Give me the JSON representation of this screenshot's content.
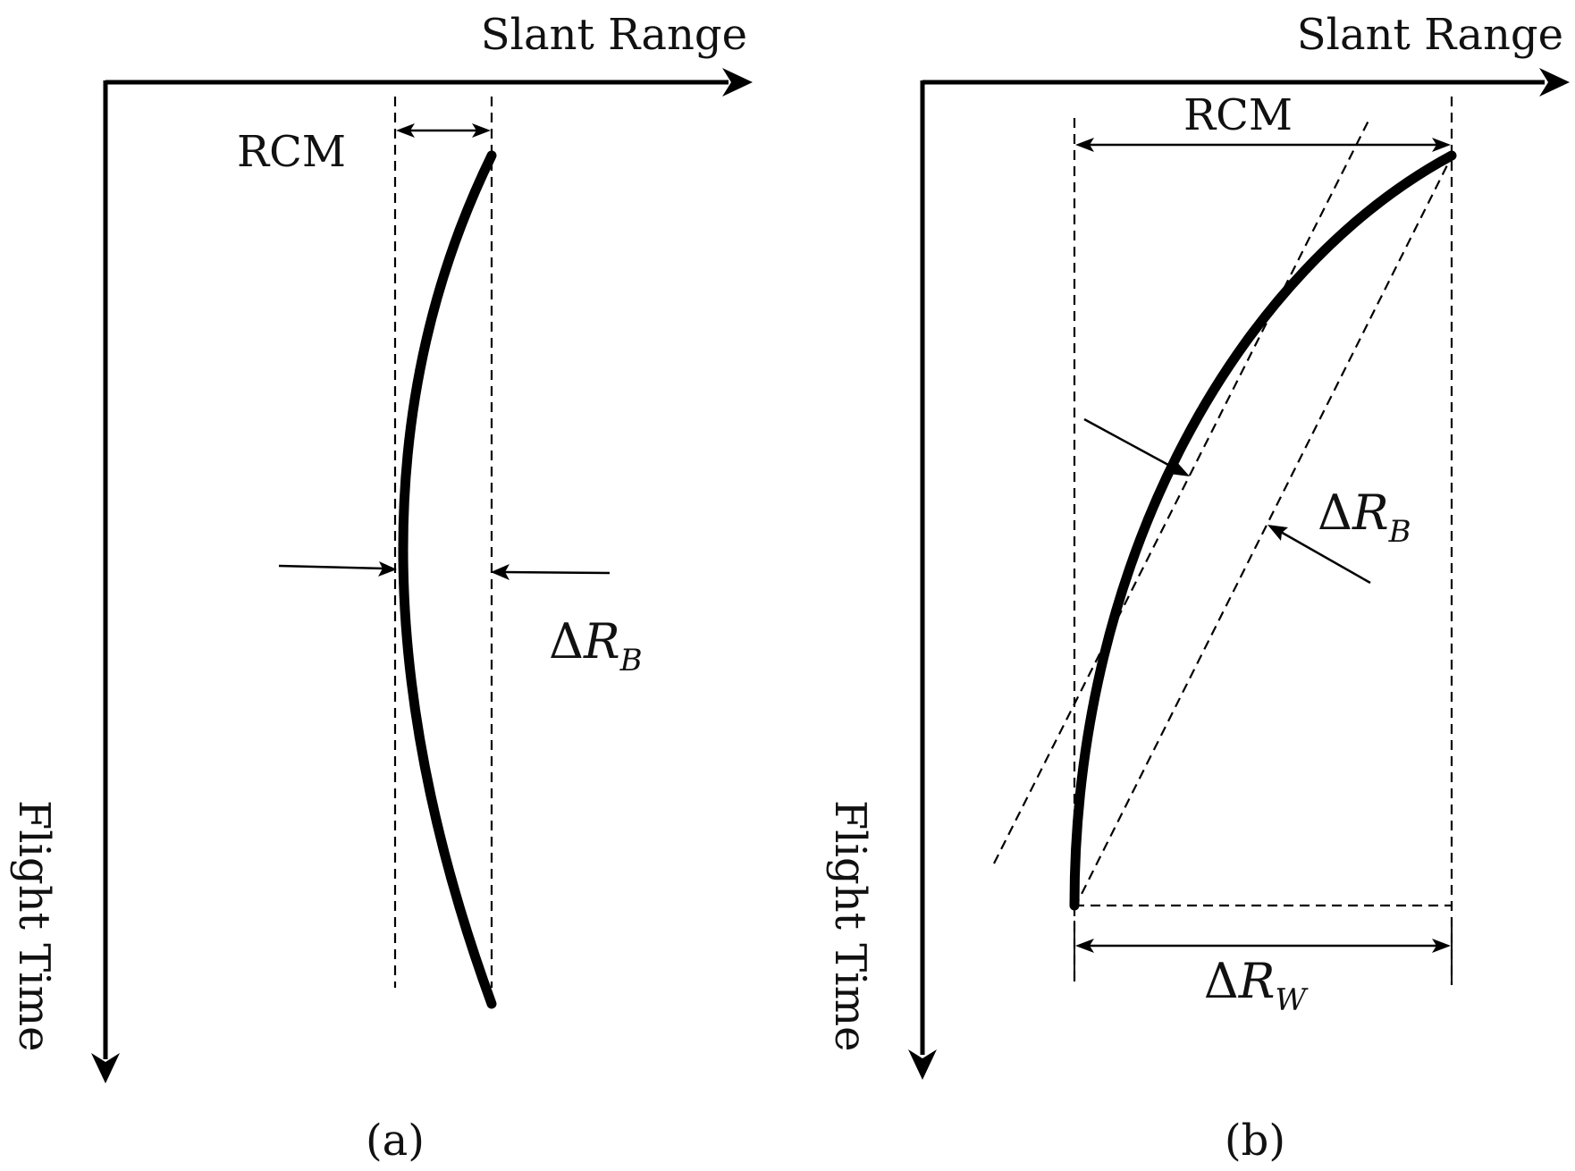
{
  "panel_a": {
    "x_axis_label": "Slant Range",
    "y_axis_label": "Flight Time",
    "rcm_label": "RCM",
    "delta_rb": {
      "prefix": "Δ",
      "var": "R",
      "sub": "B"
    },
    "caption": "(a)"
  },
  "panel_b": {
    "x_axis_label": "Slant Range",
    "y_axis_label": "Flight Time",
    "rcm_label": "RCM",
    "delta_rb": {
      "prefix": "Δ",
      "var": "R",
      "sub": "B"
    },
    "delta_rw": {
      "prefix": "Δ",
      "var": "R",
      "sub": "W"
    },
    "caption": "(b)"
  }
}
